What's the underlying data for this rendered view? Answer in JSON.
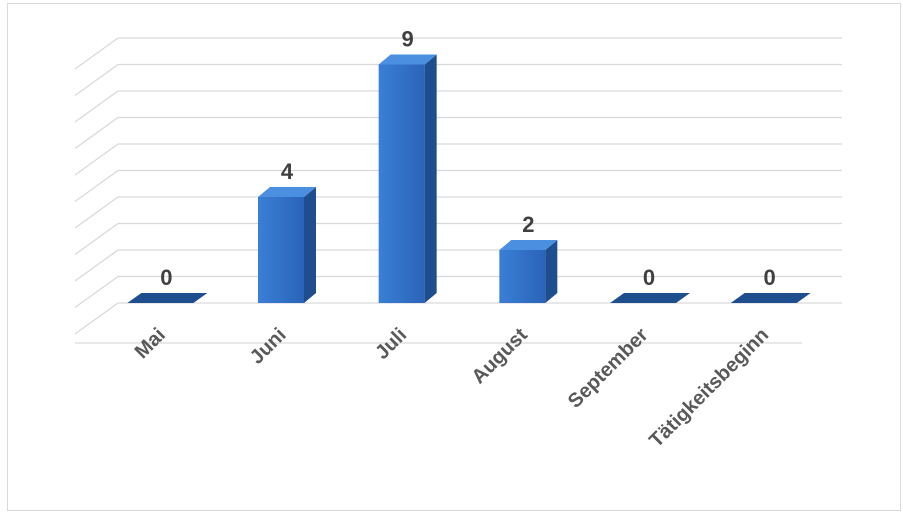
{
  "chart_data": {
    "type": "bar",
    "categories": [
      "Mai",
      "Juni",
      "Juli",
      "August",
      "September",
      "Tätigkeitsbeginn"
    ],
    "values": [
      0,
      4,
      9,
      2,
      0,
      0
    ],
    "title": "",
    "xlabel": "",
    "ylabel": "",
    "ylim": [
      0,
      10
    ],
    "grid": true,
    "legend": "none",
    "three_d": true,
    "data_labels": true,
    "colors": {
      "bar_front": "#2f70c9",
      "bar_side": "#1f4e8f",
      "bar_top": "#4a8fe0",
      "gridline": "#d9d9d9",
      "data_label": "#404040",
      "tick_label": "#595959"
    }
  }
}
